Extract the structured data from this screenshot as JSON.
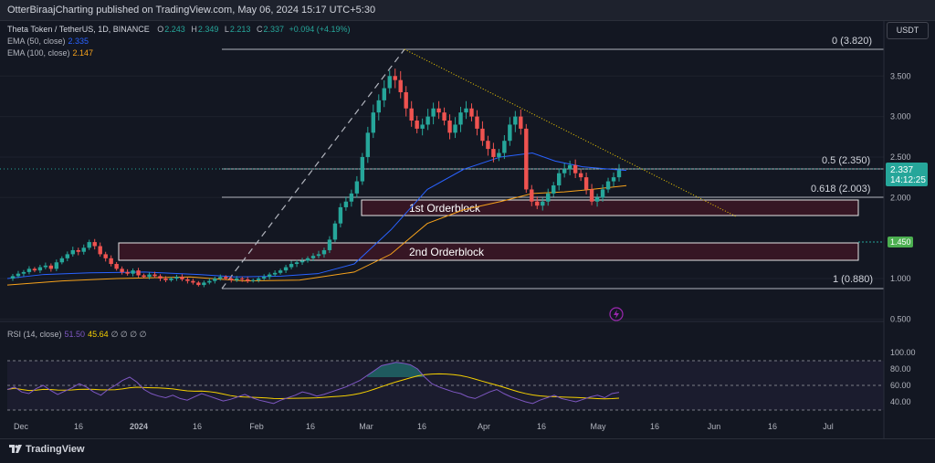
{
  "header": {
    "title": "OtterBiraajCharting published on TradingView.com, May 06, 2024 15:17 UTC+5:30"
  },
  "legend": {
    "symbol": "Theta Token / TetherUS, 1D, BINANCE",
    "ohlc": {
      "o_label": "O",
      "o": "2.243",
      "h_label": "H",
      "h": "2.349",
      "l_label": "L",
      "l": "2.213",
      "c_label": "C",
      "c": "2.337",
      "change": "+0.094 (+4.19%)"
    },
    "ema50": {
      "label": "EMA (50, close)",
      "value": "2.335"
    },
    "ema100": {
      "label": "EMA (100, close)",
      "value": "2.147"
    },
    "rsi": {
      "label": "RSI (14, close)",
      "value": "51.50",
      "ma": "45.64",
      "extra": "∅ ∅ ∅ ∅"
    }
  },
  "currency_button": "USDT",
  "footer": {
    "logo": "TradingView"
  },
  "colors": {
    "up": "#26a69a",
    "down": "#ef5350",
    "ema50": "#2962ff",
    "ema100": "#f7a21b",
    "rsi": "#7e57c2",
    "rsi_ma": "#f5d000",
    "background": "#131722"
  },
  "chart_data": {
    "type": "candlestick",
    "x_ticks": [
      "Dec",
      "16",
      "2024",
      "16",
      "Feb",
      "16",
      "Mar",
      "16",
      "Apr",
      "16",
      "May",
      "16",
      "Jun",
      "16",
      "Jul"
    ],
    "y_ticks": [
      "3.500",
      "3.000",
      "2.500",
      "2.000",
      "1.000",
      "0.500"
    ],
    "ylim": [
      0.5,
      4.0
    ],
    "price_path": [
      1.0,
      1.03,
      1.06,
      1.08,
      1.12,
      1.1,
      1.14,
      1.16,
      1.12,
      1.2,
      1.25,
      1.3,
      1.35,
      1.33,
      1.38,
      1.45,
      1.4,
      1.3,
      1.25,
      1.18,
      1.12,
      1.08,
      1.06,
      1.1,
      1.04,
      1.02,
      1.05,
      1.03,
      1.0,
      0.98,
      1.0,
      1.02,
      0.99,
      0.97,
      0.95,
      0.92,
      0.95,
      0.97,
      1.0,
      1.02,
      1.0,
      0.98,
      1.0,
      0.99,
      0.97,
      0.98,
      1.0,
      1.02,
      1.05,
      1.07,
      1.1,
      1.14,
      1.18,
      1.2,
      1.22,
      1.25,
      1.28,
      1.3,
      1.35,
      1.48,
      1.68,
      1.88,
      1.95,
      2.05,
      2.2,
      2.5,
      2.8,
      3.05,
      3.2,
      3.35,
      3.5,
      3.45,
      3.3,
      3.1,
      2.95,
      2.85,
      2.9,
      3.0,
      3.1,
      3.05,
      2.95,
      2.8,
      2.9,
      3.05,
      3.1,
      3.0,
      2.85,
      2.7,
      2.6,
      2.5,
      2.55,
      2.7,
      2.9,
      3.0,
      2.85,
      2.1,
      1.95,
      1.9,
      1.95,
      2.05,
      2.15,
      2.3,
      2.35,
      2.4,
      2.3,
      2.25,
      2.1,
      1.95,
      2.0,
      2.1,
      2.2,
      2.25,
      2.337
    ],
    "ema50_points": [
      [
        0,
        1.0
      ],
      [
        40,
        1.05
      ],
      [
        90,
        1.07
      ],
      [
        150,
        1.08
      ],
      [
        210,
        1.05
      ],
      [
        250,
        1.02
      ],
      [
        300,
        1.03
      ],
      [
        340,
        1.06
      ],
      [
        380,
        1.18
      ],
      [
        420,
        1.6
      ],
      [
        460,
        2.1
      ],
      [
        500,
        2.35
      ],
      [
        540,
        2.5
      ],
      [
        575,
        2.55
      ],
      [
        600,
        2.45
      ],
      [
        630,
        2.38
      ],
      [
        660,
        2.35
      ],
      [
        678,
        2.335
      ]
    ],
    "ema100_points": [
      [
        0,
        0.92
      ],
      [
        60,
        0.97
      ],
      [
        120,
        1.0
      ],
      [
        200,
        1.02
      ],
      [
        260,
        0.97
      ],
      [
        320,
        0.98
      ],
      [
        380,
        1.08
      ],
      [
        420,
        1.3
      ],
      [
        460,
        1.68
      ],
      [
        500,
        1.85
      ],
      [
        540,
        1.95
      ],
      [
        575,
        2.05
      ],
      [
        610,
        2.07
      ],
      [
        640,
        2.1
      ],
      [
        678,
        2.147
      ]
    ],
    "rsi_values": [
      55,
      58,
      52,
      50,
      56,
      60,
      54,
      49,
      53,
      57,
      62,
      58,
      52,
      48,
      55,
      60,
      66,
      70,
      64,
      55,
      50,
      47,
      45,
      48,
      44,
      42,
      46,
      50,
      47,
      44,
      41,
      43,
      46,
      49,
      45,
      42,
      40,
      38,
      42,
      45,
      48,
      52,
      50,
      47,
      49,
      52,
      55,
      58,
      62,
      66,
      72,
      78,
      84,
      86,
      88,
      87,
      85,
      80,
      70,
      62,
      58,
      55,
      52,
      50,
      46,
      44,
      48,
      52,
      55,
      50,
      46,
      43,
      40,
      38,
      42,
      45,
      48,
      44,
      42,
      40,
      43,
      46,
      48,
      45,
      50,
      51.5
    ],
    "rsi_ticks": [
      "100.00",
      "80.00",
      "60.00",
      "40.00"
    ]
  },
  "annotations": {
    "fib_0": "0 (3.820)",
    "fib_05": "0.5 (2.350)",
    "fib_0618": "0.618 (2.003)",
    "fib_1": "1 (0.880)",
    "orderblock1": "1st Orderblock",
    "orderblock2": "2nd Orderblock",
    "price_label": "2.337",
    "countdown": "14:12:25",
    "level_label": "1.450"
  }
}
